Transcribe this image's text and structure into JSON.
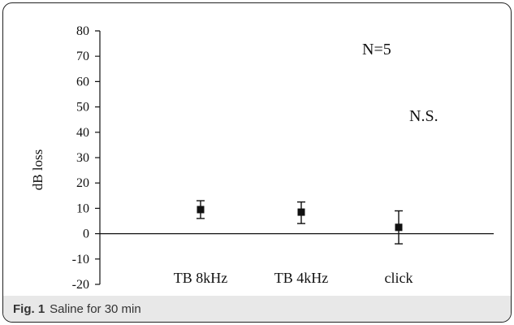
{
  "chart_data": {
    "type": "scatter",
    "categories": [
      "TB 8kHz",
      "TB 4kHz",
      "click"
    ],
    "values": [
      9.5,
      8.5,
      2.5
    ],
    "errors": [
      {
        "low": 6,
        "high": 13
      },
      {
        "low": 4,
        "high": 12.5
      },
      {
        "low": -4,
        "high": 9
      }
    ],
    "title": "",
    "xlabel": "",
    "ylabel": "dB loss",
    "ylim": [
      -20,
      80
    ],
    "yticks": [
      80,
      70,
      60,
      50,
      40,
      30,
      20,
      10,
      0,
      -10,
      -20
    ],
    "grid": false,
    "annotations": [
      "N=5",
      "N.S."
    ]
  },
  "caption": {
    "label": "Fig. 1",
    "text": "Saline for 30 min"
  }
}
